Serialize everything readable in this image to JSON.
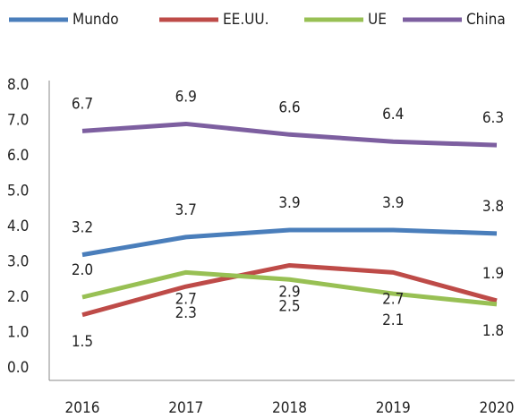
{
  "chart_data": {
    "type": "line",
    "categories": [
      "2016",
      "2017",
      "2018",
      "2019",
      "2020"
    ],
    "series": [
      {
        "name": "Mundo",
        "color": "#4a7ebb",
        "values": [
          3.2,
          3.7,
          3.9,
          3.9,
          3.8
        ],
        "value_labels": [
          "3.2",
          "3.7",
          "3.9",
          "3.9",
          "3.8"
        ]
      },
      {
        "name": "EE.UU.",
        "color": "#be4b48",
        "values": [
          1.5,
          2.3,
          2.9,
          2.7,
          1.9
        ],
        "value_labels": [
          "1.5",
          "2.3",
          "2.9",
          "2.7",
          "1.9"
        ]
      },
      {
        "name": "UE",
        "color": "#98c054",
        "values": [
          2.0,
          2.7,
          2.5,
          2.1,
          1.8
        ],
        "value_labels": [
          "2.0",
          "2.7",
          "2.5",
          "2.1",
          "1.8"
        ]
      },
      {
        "name": "China",
        "color": "#7d5fa0",
        "values": [
          6.7,
          6.9,
          6.6,
          6.4,
          6.3
        ],
        "value_labels": [
          "6.7",
          "6.9",
          "6.6",
          "6.4",
          "6.3"
        ]
      }
    ],
    "ylim": [
      0,
      8
    ],
    "yticks": [
      {
        "value": 0,
        "label": "0.0"
      },
      {
        "value": 1,
        "label": "1.0"
      },
      {
        "value": 2,
        "label": "2.0"
      },
      {
        "value": 3,
        "label": "3.0"
      },
      {
        "value": 4,
        "label": "4.0"
      },
      {
        "value": 5,
        "label": "5.0"
      },
      {
        "value": 6,
        "label": "6.0"
      },
      {
        "value": 7,
        "label": "7.0"
      },
      {
        "value": 8,
        "label": "8.0"
      }
    ],
    "legend": "top"
  }
}
